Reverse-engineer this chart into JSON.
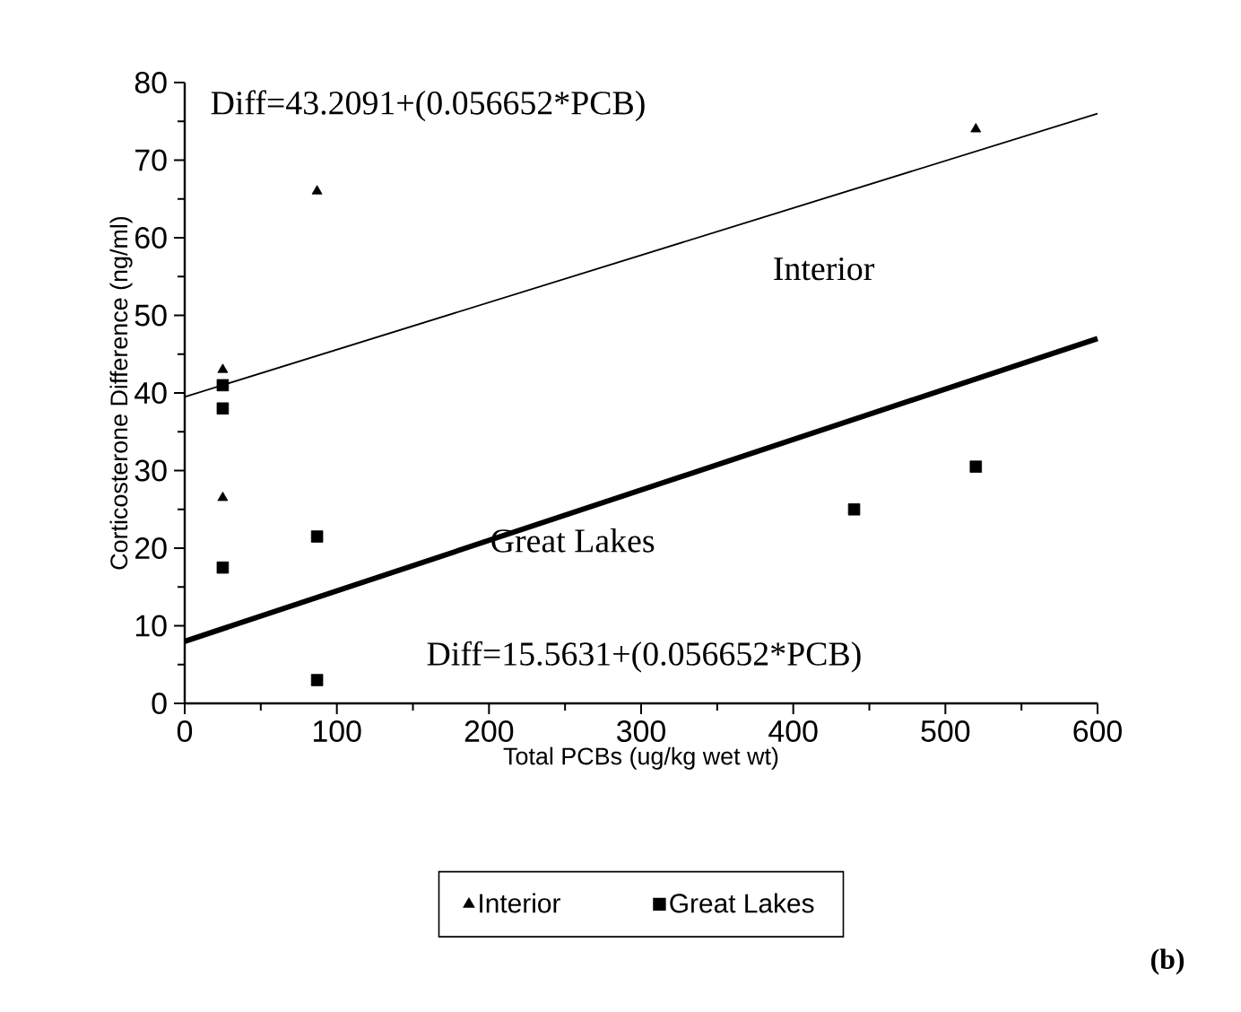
{
  "chart_data": {
    "type": "scatter",
    "xlabel": "Total PCBs (ug/kg wet wt)",
    "ylabel": "Corticosterone Difference (ng/ml)",
    "xlim": [
      0,
      600
    ],
    "xticks": [
      0,
      100,
      200,
      300,
      400,
      500,
      600
    ],
    "ylim": [
      0,
      80
    ],
    "yticks": [
      0,
      10,
      20,
      30,
      40,
      50,
      60,
      70,
      80
    ],
    "legend": "bottom",
    "grid": false,
    "series": [
      {
        "name": "Interior",
        "color": "#000000",
        "marker": "triangle",
        "x": [
          25,
          25,
          87,
          520
        ],
        "values": [
          43,
          26.5,
          66,
          74
        ]
      },
      {
        "name": "Great Lakes",
        "color": "#000000",
        "marker": "square",
        "x": [
          25,
          25,
          25,
          87,
          87,
          440,
          520
        ],
        "values": [
          41,
          38,
          17.5,
          21.5,
          3,
          25,
          30.5
        ]
      },
      {
        "type": "line",
        "color": "#000000",
        "marker": "none",
        "line_style": "solid",
        "x": [
          0,
          600
        ],
        "values": [
          39.5,
          76
        ]
      },
      {
        "type": "line",
        "color": "#000000",
        "marker": "none",
        "line_style": "solid",
        "x": [
          0,
          600
        ],
        "values": [
          8,
          47
        ]
      }
    ],
    "annotations": [
      "Diff=43.2091+(0.056652*PCB)",
      "Interior",
      "Great Lakes",
      "Diff=15.5631+(0.056652*PCB)",
      "(b)"
    ]
  }
}
